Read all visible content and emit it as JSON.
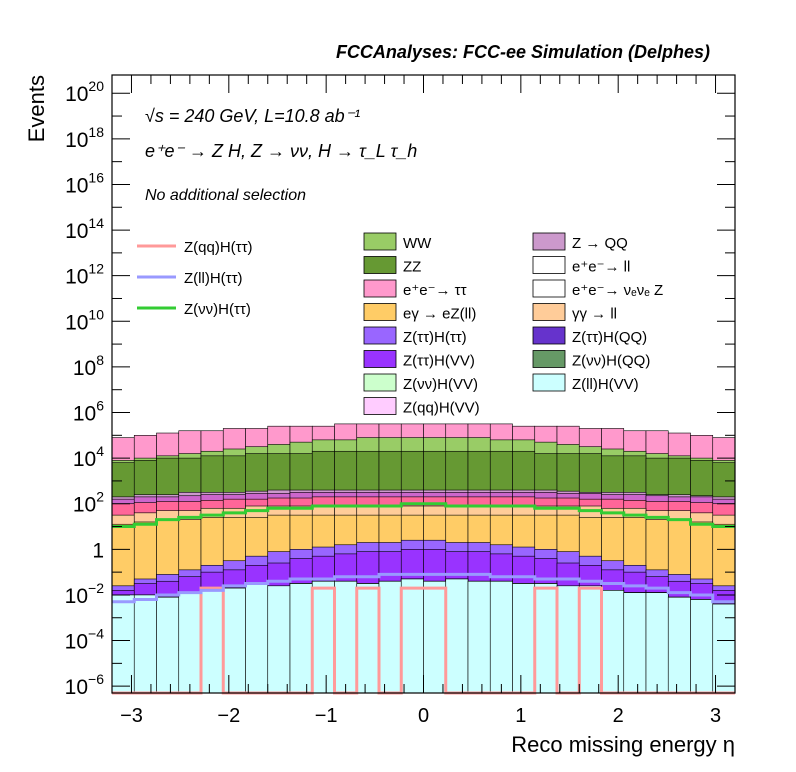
{
  "chart_data": {
    "type": "area",
    "title": "FCCAnalyses: FCC-ee Simulation (Delphes)",
    "xlabel": "Reco missing energy η",
    "ylabel": "Events",
    "xlim": [
      -3.2,
      3.2
    ],
    "ylim_log10": [
      -6.3,
      20.8
    ],
    "log_y": true,
    "x_ticks": [
      "−3",
      "−2",
      "−1",
      "0",
      "1",
      "2",
      "3"
    ],
    "y_ticks": [
      {
        "base": "10",
        "exp": "−6",
        "value": -6
      },
      {
        "base": "10",
        "exp": "−4",
        "value": -4
      },
      {
        "base": "10",
        "exp": "−2",
        "value": -2
      },
      {
        "base": "1",
        "exp": "",
        "value": 0
      },
      {
        "base": "10",
        "exp": "2",
        "value": 2
      },
      {
        "base": "10",
        "exp": "4",
        "value": 4
      },
      {
        "base": "10",
        "exp": "6",
        "value": 6
      },
      {
        "base": "10",
        "exp": "8",
        "value": 8
      },
      {
        "base": "10",
        "exp": "10",
        "value": 10
      },
      {
        "base": "10",
        "exp": "12",
        "value": 12
      },
      {
        "base": "10",
        "exp": "14",
        "value": 14
      },
      {
        "base": "10",
        "exp": "16",
        "value": 16
      },
      {
        "base": "10",
        "exp": "18",
        "value": 18
      },
      {
        "base": "10",
        "exp": "20",
        "value": 20
      }
    ],
    "annotations": [
      "√s = 240 GeV, L=10.8 ab⁻¹",
      "e⁺e⁻ → Z H, Z → νν, H → τ_L τ_h",
      "No additional selection"
    ],
    "stack_log10_tops": [
      {
        "name": "Z(ll)H(VV)",
        "color": "#ccffff",
        "values": [
          -2.0,
          -2.0,
          -2.1,
          -1.9,
          -1.8,
          -1.7,
          -1.5,
          -1.6,
          -1.5,
          -1.4,
          -1.4,
          -1.5,
          -1.4,
          -1.3,
          -1.4,
          -1.3,
          -1.4,
          -1.4,
          -1.5,
          -1.5,
          -1.6,
          -1.6,
          -1.8,
          -1.9,
          -1.9,
          -2.1,
          -2.2,
          -2.4
        ]
      },
      {
        "name": "Z(qq)H(VV)",
        "color": "#ffccff",
        "values": [
          -2.0,
          -2.0,
          -2.1,
          -1.9,
          -1.8,
          -1.7,
          -1.5,
          -1.6,
          -1.5,
          -1.4,
          -1.4,
          -1.5,
          -1.4,
          -1.3,
          -1.4,
          -1.3,
          -1.4,
          -1.4,
          -1.5,
          -1.5,
          -1.6,
          -1.6,
          -1.8,
          -1.9,
          -1.9,
          -2.1,
          -2.2,
          -2.4
        ]
      },
      {
        "name": "Z(νν)H(VV)",
        "color": "#ccffcc",
        "values": [
          -2.0,
          -2.0,
          -2.1,
          -1.9,
          -1.8,
          -1.7,
          -1.5,
          -1.6,
          -1.5,
          -1.4,
          -1.4,
          -1.5,
          -1.4,
          -1.3,
          -1.4,
          -1.3,
          -1.4,
          -1.4,
          -1.5,
          -1.5,
          -1.6,
          -1.6,
          -1.8,
          -1.9,
          -1.9,
          -2.1,
          -2.2,
          -2.4
        ]
      },
      {
        "name": "Z(νν)H(QQ)",
        "color": "#669966",
        "values": [
          -2.0,
          -2.0,
          -2.1,
          -1.9,
          -1.8,
          -1.7,
          -1.5,
          -1.6,
          -1.5,
          -1.4,
          -1.4,
          -1.5,
          -1.4,
          -1.3,
          -1.4,
          -1.3,
          -1.4,
          -1.4,
          -1.5,
          -1.5,
          -1.6,
          -1.6,
          -1.8,
          -1.9,
          -1.9,
          -2.1,
          -2.2,
          -2.4
        ]
      },
      {
        "name": "Z(ττ)H(QQ)",
        "color": "#6633cc",
        "values": [
          -2.0,
          -2.0,
          -2.1,
          -1.9,
          -1.8,
          -1.7,
          -1.5,
          -1.6,
          -1.5,
          -1.4,
          -1.4,
          -1.5,
          -1.4,
          -1.3,
          -1.4,
          -1.3,
          -1.4,
          -1.4,
          -1.5,
          -1.5,
          -1.6,
          -1.6,
          -1.8,
          -1.9,
          -1.9,
          -2.1,
          -2.2,
          -2.4
        ]
      },
      {
        "name": "Z(ττ)H(VV)",
        "color": "#9933ff",
        "values": [
          -1.8,
          -1.5,
          -1.4,
          -1.2,
          -1.0,
          -0.9,
          -0.7,
          -0.6,
          -0.4,
          -0.3,
          -0.2,
          -0.1,
          -0.1,
          0.0,
          0.0,
          -0.1,
          -0.1,
          -0.2,
          -0.3,
          -0.4,
          -0.6,
          -0.7,
          -0.9,
          -1.0,
          -1.2,
          -1.4,
          -1.5,
          -1.8
        ]
      },
      {
        "name": "Z(ττ)H(ττ)",
        "color": "#9966ff",
        "values": [
          -1.6,
          -1.3,
          -1.1,
          -0.9,
          -0.7,
          -0.5,
          -0.3,
          -0.1,
          0.0,
          0.1,
          0.2,
          0.3,
          0.3,
          0.4,
          0.4,
          0.3,
          0.3,
          0.2,
          0.1,
          0.0,
          -0.1,
          -0.3,
          -0.5,
          -0.7,
          -0.9,
          -1.1,
          -1.3,
          -1.6
        ]
      },
      {
        "name": "eγ → eZ(ll)",
        "color": "#ffcc66",
        "values": [
          1.1,
          1.2,
          1.3,
          1.3,
          1.4,
          1.4,
          1.4,
          1.5,
          1.5,
          1.5,
          1.5,
          1.5,
          1.5,
          1.5,
          1.5,
          1.5,
          1.5,
          1.5,
          1.5,
          1.5,
          1.5,
          1.4,
          1.4,
          1.4,
          1.3,
          1.3,
          1.2,
          1.1
        ]
      },
      {
        "name": "γγ → ll",
        "color": "#ffcc99",
        "values": [
          1.5,
          1.6,
          1.7,
          1.7,
          1.8,
          1.8,
          1.9,
          1.9,
          1.9,
          1.9,
          1.9,
          1.9,
          1.9,
          1.9,
          1.9,
          1.9,
          1.9,
          1.9,
          1.9,
          1.9,
          1.9,
          1.9,
          1.8,
          1.8,
          1.7,
          1.7,
          1.6,
          1.5
        ]
      },
      {
        "name": "e⁺e⁻ → νₑνₑ Z",
        "color": "#ff6699",
        "values": [
          2.0,
          2.05,
          2.1,
          2.1,
          2.15,
          2.2,
          2.2,
          2.25,
          2.25,
          2.3,
          2.3,
          2.3,
          2.3,
          2.3,
          2.3,
          2.3,
          2.3,
          2.3,
          2.3,
          2.25,
          2.25,
          2.2,
          2.2,
          2.15,
          2.1,
          2.1,
          2.05,
          2.0
        ]
      },
      {
        "name": "e⁺e⁻ → ll",
        "color": "#cc66cc",
        "values": [
          2.2,
          2.3,
          2.3,
          2.35,
          2.4,
          2.4,
          2.45,
          2.45,
          2.5,
          2.5,
          2.5,
          2.5,
          2.5,
          2.5,
          2.5,
          2.5,
          2.5,
          2.5,
          2.5,
          2.5,
          2.45,
          2.45,
          2.4,
          2.4,
          2.35,
          2.3,
          2.3,
          2.2
        ]
      },
      {
        "name": "Z → QQ",
        "color": "#cc99cc",
        "values": [
          2.3,
          2.4,
          2.4,
          2.5,
          2.5,
          2.5,
          2.55,
          2.6,
          2.6,
          2.6,
          2.6,
          2.6,
          2.6,
          2.6,
          2.6,
          2.6,
          2.6,
          2.6,
          2.6,
          2.6,
          2.55,
          2.5,
          2.5,
          2.5,
          2.4,
          2.4,
          2.35,
          2.3
        ]
      },
      {
        "name": "ZZ",
        "color": "#669933",
        "values": [
          3.8,
          3.9,
          4.0,
          4.0,
          4.1,
          4.1,
          4.2,
          4.2,
          4.2,
          4.3,
          4.3,
          4.3,
          4.3,
          4.3,
          4.3,
          4.3,
          4.3,
          4.3,
          4.3,
          4.2,
          4.2,
          4.2,
          4.1,
          4.1,
          4.0,
          4.0,
          3.9,
          3.8
        ]
      },
      {
        "name": "WW",
        "color": "#99cc66",
        "values": [
          3.9,
          4.0,
          4.1,
          4.2,
          4.3,
          4.4,
          4.5,
          4.6,
          4.7,
          4.8,
          4.8,
          4.9,
          4.9,
          4.9,
          4.9,
          4.9,
          4.9,
          4.8,
          4.8,
          4.7,
          4.6,
          4.5,
          4.4,
          4.3,
          4.2,
          4.1,
          4.0,
          3.9
        ]
      },
      {
        "name": "e⁺e⁻→ ττ",
        "color": "#ff99cc",
        "values": [
          4.9,
          5.0,
          5.1,
          5.2,
          5.2,
          5.3,
          5.3,
          5.4,
          5.4,
          5.4,
          5.5,
          5.5,
          5.5,
          5.5,
          5.5,
          5.5,
          5.5,
          5.5,
          5.4,
          5.4,
          5.4,
          5.3,
          5.3,
          5.2,
          5.2,
          5.1,
          5.0,
          4.9
        ]
      }
    ],
    "signal_lines_log10": [
      {
        "name": "Z(qq)H(ττ)",
        "color": "#ff9999",
        "values": [
          -6.5,
          -6.5,
          -6.5,
          -6.5,
          -1.7,
          -6.5,
          -6.5,
          -6.5,
          -6.5,
          -1.7,
          -6.5,
          -1.7,
          -6.5,
          -1.7,
          -1.7,
          -6.5,
          -6.5,
          -6.5,
          -6.5,
          -1.7,
          -6.5,
          -1.7,
          -6.5,
          -6.5,
          -6.5,
          -6.5,
          -6.5,
          -6.5
        ]
      },
      {
        "name": "Z(ll)H(ττ)",
        "color": "#9999ff",
        "values": [
          -2.3,
          -2.2,
          -2.0,
          -1.9,
          -1.8,
          -1.6,
          -1.5,
          -1.4,
          -1.3,
          -1.3,
          -1.2,
          -1.2,
          -1.1,
          -1.1,
          -1.1,
          -1.1,
          -1.1,
          -1.2,
          -1.2,
          -1.3,
          -1.3,
          -1.4,
          -1.5,
          -1.6,
          -1.7,
          -1.9,
          -2.0,
          -2.3
        ]
      },
      {
        "name": "Z(νν)H(ττ)",
        "color": "#33cc33",
        "values": [
          1.0,
          1.1,
          1.3,
          1.4,
          1.5,
          1.6,
          1.7,
          1.8,
          1.8,
          1.9,
          1.9,
          1.9,
          1.9,
          2.0,
          2.0,
          1.9,
          1.9,
          1.9,
          1.9,
          1.8,
          1.8,
          1.7,
          1.6,
          1.5,
          1.4,
          1.3,
          1.1,
          1.0
        ]
      }
    ],
    "legend": {
      "lines": [
        "Z(qq)H(ττ)",
        "Z(ll)H(ττ)",
        "Z(νν)H(ττ)"
      ],
      "col1": [
        "WW",
        "ZZ",
        "e⁺e⁻→ ττ",
        "eγ → eZ(ll)",
        "Z(ττ)H(ττ)",
        "Z(ττ)H(VV)",
        "Z(νν)H(VV)",
        "Z(qq)H(VV)"
      ],
      "col2": [
        "Z → QQ",
        "e⁺e⁻→ ll",
        "e⁺e⁻→ νₑνₑ Z",
        "γγ → ll",
        "Z(ττ)H(QQ)",
        "Z(νν)H(QQ)",
        "Z(ll)H(VV)"
      ]
    }
  }
}
